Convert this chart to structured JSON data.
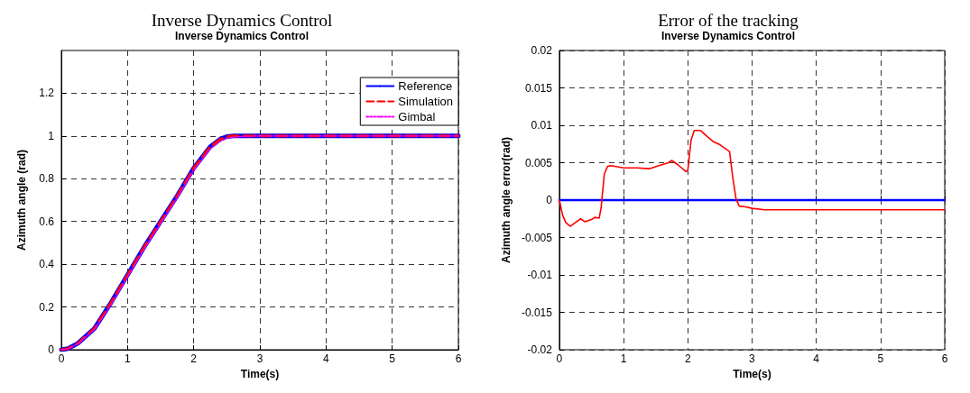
{
  "chart_data": [
    {
      "type": "line",
      "title": "Inverse Dynamics Control",
      "subtitle": "Inverse Dynamics Control",
      "xlabel": "Time(s)",
      "ylabel": "Azimuth angle (rad)",
      "xlim": [
        0,
        6
      ],
      "xticks": [
        0,
        1,
        2,
        3,
        4,
        5,
        6
      ],
      "ylim": [
        0,
        1.4
      ],
      "yticks": [
        0,
        0.2,
        0.4,
        0.6,
        0.8,
        1,
        1.2
      ],
      "grid": true,
      "legend": "top right",
      "marker": "none",
      "series": [
        {
          "name": "Reference",
          "color": "#0000ff",
          "line_style": "solid",
          "x": [
            0,
            0.1,
            0.25,
            0.5,
            0.75,
            1,
            1.25,
            1.5,
            1.75,
            2,
            2.25,
            2.4,
            2.5,
            2.6,
            3,
            4,
            5,
            6
          ],
          "values": [
            0,
            0.005,
            0.03,
            0.1,
            0.22,
            0.35,
            0.48,
            0.6,
            0.72,
            0.85,
            0.95,
            0.985,
            0.997,
            1,
            1,
            1,
            1,
            1
          ]
        },
        {
          "name": "Simulation",
          "color": "#ff0000",
          "line_style": "dashed",
          "x": [
            0,
            0.1,
            0.25,
            0.5,
            0.75,
            1,
            1.25,
            1.5,
            1.75,
            2,
            2.25,
            2.4,
            2.5,
            2.6,
            3,
            4,
            5,
            6
          ],
          "values": [
            0,
            0.005,
            0.03,
            0.1,
            0.22,
            0.35,
            0.48,
            0.6,
            0.72,
            0.85,
            0.95,
            0.985,
            0.997,
            1,
            1,
            1,
            1,
            1
          ]
        },
        {
          "name": "Gimbal",
          "color": "#ff00ff",
          "line_style": "dotted",
          "x": [
            0,
            0.1,
            0.25,
            0.5,
            0.75,
            1,
            1.25,
            1.5,
            1.75,
            2,
            2.25,
            2.4,
            2.5,
            2.6,
            2.8,
            3,
            4,
            5,
            6
          ],
          "values": [
            0,
            0.004,
            0.028,
            0.095,
            0.21,
            0.34,
            0.47,
            0.59,
            0.71,
            0.84,
            0.94,
            0.975,
            0.99,
            0.995,
            0.999,
            1,
            1,
            1,
            1
          ]
        }
      ]
    },
    {
      "type": "line",
      "title": "Error of the tracking",
      "subtitle": "Inverse Dynamics Control",
      "xlabel": "Time(s)",
      "ylabel": "Azimuth angle error(rad)",
      "xlim": [
        0,
        6
      ],
      "xticks": [
        0,
        1,
        2,
        3,
        4,
        5,
        6
      ],
      "ylim": [
        -0.02,
        0.02
      ],
      "yticks": [
        -0.02,
        -0.015,
        -0.01,
        -0.005,
        0,
        0.005,
        0.01,
        0.015,
        0.02
      ],
      "grid": true,
      "legend": false,
      "marker": "none",
      "series": [
        {
          "color": "#0000ff",
          "line_style": "solid",
          "x": [
            0,
            6
          ],
          "values": [
            0,
            0
          ]
        },
        {
          "color": "#ff0000",
          "line_style": "solid",
          "x": [
            0,
            0.05,
            0.1,
            0.17,
            0.25,
            0.33,
            0.4,
            0.5,
            0.55,
            0.62,
            0.65,
            0.7,
            0.75,
            0.8,
            1,
            1.2,
            1.4,
            1.55,
            1.7,
            1.75,
            1.85,
            1.97,
            2,
            2.05,
            2.1,
            2.2,
            2.3,
            2.4,
            2.5,
            2.6,
            2.65,
            2.7,
            2.75,
            2.8,
            2.9,
            3,
            3.2,
            4,
            5,
            6
          ],
          "values": [
            0,
            -0.002,
            -0.003,
            -0.0035,
            -0.003,
            -0.0025,
            -0.0029,
            -0.0026,
            -0.0023,
            -0.0024,
            -0.001,
            0.0035,
            0.0045,
            0.0046,
            0.0043,
            0.0043,
            0.0042,
            0.0046,
            0.005,
            0.0053,
            0.0047,
            0.0038,
            0.004,
            0.008,
            0.0093,
            0.0093,
            0.0085,
            0.0078,
            0.0074,
            0.0068,
            0.0065,
            0.003,
            0.0002,
            -0.0008,
            -0.0009,
            -0.0011,
            -0.0013,
            -0.0013,
            -0.0013,
            -0.0013
          ]
        }
      ]
    }
  ]
}
